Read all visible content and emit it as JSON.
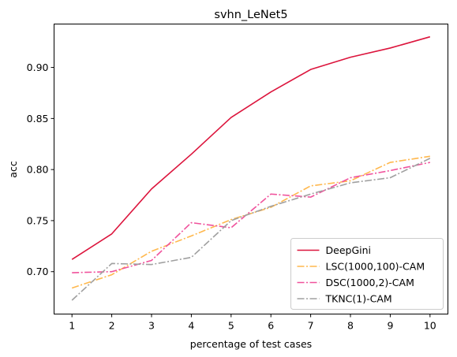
{
  "chart_data": {
    "type": "line",
    "title": "svhn_LeNet5",
    "xlabel": "percentage of test cases",
    "ylabel": "acc",
    "x": [
      1,
      2,
      3,
      4,
      5,
      6,
      7,
      8,
      9,
      10
    ],
    "xlim": [
      0.55,
      10.45
    ],
    "ylim": [
      0.6585,
      0.9425
    ],
    "yticks": [
      "0.70",
      "0.75",
      "0.80",
      "0.85",
      "0.90"
    ],
    "ytick_values": [
      0.7,
      0.75,
      0.8,
      0.85,
      0.9
    ],
    "xticks": [
      "1",
      "2",
      "3",
      "4",
      "5",
      "6",
      "7",
      "8",
      "9",
      "10"
    ],
    "grid": false,
    "legend_position": "lower-right",
    "series": [
      {
        "name": "DeepGini",
        "color": "#dc143c",
        "dash": "solid",
        "values": [
          0.712,
          0.737,
          0.781,
          0.815,
          0.851,
          0.876,
          0.898,
          0.91,
          0.919,
          0.93
        ]
      },
      {
        "name": "LSC(1000,100)-CAM",
        "color": "#ffb84d",
        "dash": "dashdot",
        "values": [
          0.684,
          0.697,
          0.72,
          0.735,
          0.751,
          0.763,
          0.784,
          0.789,
          0.807,
          0.813
        ]
      },
      {
        "name": "DSC(1000,2)-CAM",
        "color": "#f0529c",
        "dash": "dashdot",
        "values": [
          0.699,
          0.7,
          0.711,
          0.748,
          0.743,
          0.776,
          0.773,
          0.792,
          0.799,
          0.807
        ]
      },
      {
        "name": "TKNC(1)-CAM",
        "color": "#a0a0a0",
        "dash": "dashdot",
        "values": [
          0.672,
          0.708,
          0.707,
          0.714,
          0.75,
          0.764,
          0.776,
          0.787,
          0.792,
          0.811
        ]
      }
    ]
  }
}
